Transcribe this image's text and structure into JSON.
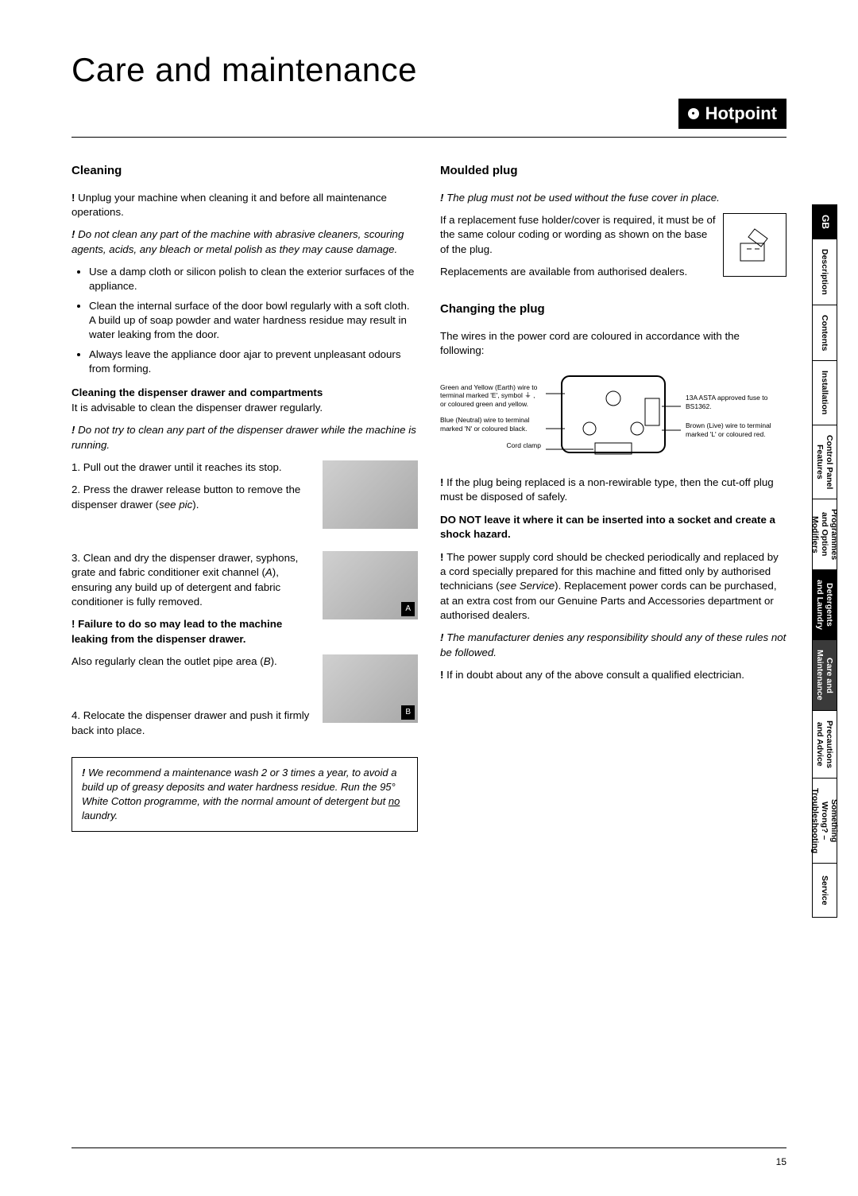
{
  "title": "Care and maintenance",
  "brand": "Hotpoint",
  "page_number": "15",
  "tabs": [
    {
      "label": "GB",
      "cls": "gb active"
    },
    {
      "label": "Description",
      "cls": ""
    },
    {
      "label": "Contents",
      "cls": ""
    },
    {
      "label": "Installation",
      "cls": ""
    },
    {
      "label": "Control Panel\nFeatures",
      "cls": ""
    },
    {
      "label": "Programmes\nand Option\nModifiers",
      "cls": ""
    },
    {
      "label": "Detergents\nand Laundry",
      "cls": "active"
    },
    {
      "label": "Care and\nMaintenance",
      "cls": "current"
    },
    {
      "label": "Precautions\nand Advice",
      "cls": ""
    },
    {
      "label": "Something\nWrong? –\nTroubleshooting",
      "cls": ""
    },
    {
      "label": "Service",
      "cls": ""
    }
  ],
  "left": {
    "h_cleaning": "Cleaning",
    "p1": "Unplug your machine when cleaning it and before all maintenance operations.",
    "p2": "Do not clean any part of the machine with abrasive cleaners, scouring agents, acids, any bleach or metal polish as they may cause damage.",
    "b1": "Use a damp cloth or silicon polish to clean the exterior surfaces of the appliance.",
    "b2": "Clean the internal surface of the door bowl regularly with a soft cloth. A build up of soap powder and water hardness residue may result in water leaking from the door.",
    "b3": "Always leave the appliance door ajar to prevent unpleasant odours from forming.",
    "h_dispenser": "Cleaning the dispenser drawer and compartments",
    "p3": "It is advisable to clean the dispenser drawer regularly.",
    "p4": "Do not try to clean any part of the dispenser drawer while the machine is running.",
    "s1": "1.  Pull out the drawer until it reaches its stop.",
    "s2a": "2.  Press the drawer release button to remove the dispenser drawer (",
    "s2b": "see pic",
    "s2c": ").",
    "s3a": "3.  Clean and dry the dispenser drawer, syphons, grate and fabric conditioner exit channel (",
    "s3b": "A",
    "s3c": "), ensuring any build up of detergent and fabric conditioner is fully removed.",
    "w1": "Failure to do so may lead to the machine leaking from the dispenser drawer.",
    "s3d": "Also regularly clean the outlet pipe area (",
    "s3e": "B",
    "s3f": ").",
    "s4": "4.  Relocate the dispenser drawer and push it firmly back into place.",
    "note_a": "We recommend a maintenance wash 2 or 3 times a year, to avoid a build up of greasy deposits and water hardness residue. Run the 95° White Cotton programme, with the normal amount of detergent but ",
    "note_no": "no",
    "note_b": " laundry."
  },
  "right": {
    "h_moulded": "Moulded plug",
    "p1": "The plug must not be used without the fuse cover in place.",
    "p2": "If a replacement fuse holder/cover is required, it must be of the same colour coding or wording as shown on the base of the plug.",
    "p3": "Replacements are available from authorised dealers.",
    "h_changing": "Changing the plug",
    "p4": "The wires in the power cord are coloured in accordance with the following:",
    "lbl_earth": "Green and Yellow (Earth) wire to terminal marked 'E', symbol ⏚ , or coloured green and yellow.",
    "lbl_neutral": "Blue (Neutral) wire to terminal marked 'N' or coloured black.",
    "lbl_clamp": "Cord clamp",
    "lbl_fuse": "13A ASTA approved fuse to BS1362.",
    "lbl_live": "Brown (Live) wire to terminal marked 'L' or coloured red.",
    "p5": "If the plug being replaced is a non-rewirable type, then the cut-off plug must be disposed of safely.",
    "p6": "DO NOT leave it where it can be inserted into a socket and create a shock hazard.",
    "p7a": "The power supply cord should be checked periodically and replaced by a cord specially prepared for this machine and fitted only by authorised technicians (",
    "p7b": "see Service",
    "p7c": "). Replacement power cords can be purchased, at an extra cost from our Genuine Parts and Accessories department or authorised dealers.",
    "p8": "The manufacturer denies any responsibility should any of these rules not be followed.",
    "p9": "If in doubt about any of the above consult a qualified electrician."
  },
  "img_labels": {
    "a": "A",
    "b": "B"
  }
}
